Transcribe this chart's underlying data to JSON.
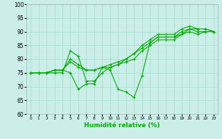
{
  "title": "",
  "xlabel": "Humidité relative (%)",
  "ylabel": "",
  "bg_color": "#cceee8",
  "grid_color": "#99ddcc",
  "line_color": "#00aa00",
  "xlim": [
    -0.5,
    23.5
  ],
  "ylim": [
    60,
    100
  ],
  "yticks": [
    60,
    65,
    70,
    75,
    80,
    85,
    90,
    95,
    100
  ],
  "xticks": [
    0,
    1,
    2,
    3,
    4,
    5,
    6,
    7,
    8,
    9,
    10,
    11,
    12,
    13,
    14,
    15,
    16,
    17,
    18,
    19,
    20,
    21,
    22,
    23
  ],
  "lines": [
    [
      75,
      75,
      75,
      75,
      75,
      83,
      81,
      72,
      72,
      75,
      77,
      78,
      80,
      82,
      85,
      87,
      89,
      89,
      89,
      91,
      92,
      91,
      91,
      90
    ],
    [
      75,
      75,
      75,
      76,
      76,
      80,
      78,
      76,
      76,
      77,
      78,
      79,
      80,
      82,
      84,
      86,
      88,
      88,
      88,
      90,
      91,
      90,
      90,
      90
    ],
    [
      75,
      75,
      75,
      76,
      76,
      79,
      77,
      76,
      76,
      77,
      77,
      78,
      79,
      80,
      83,
      85,
      87,
      87,
      87,
      89,
      90,
      89,
      90,
      90
    ],
    [
      75,
      75,
      75,
      76,
      76,
      75,
      69,
      71,
      71,
      77,
      76,
      69,
      68,
      66,
      74,
      86,
      88,
      88,
      88,
      89,
      91,
      91,
      91,
      90
    ]
  ]
}
